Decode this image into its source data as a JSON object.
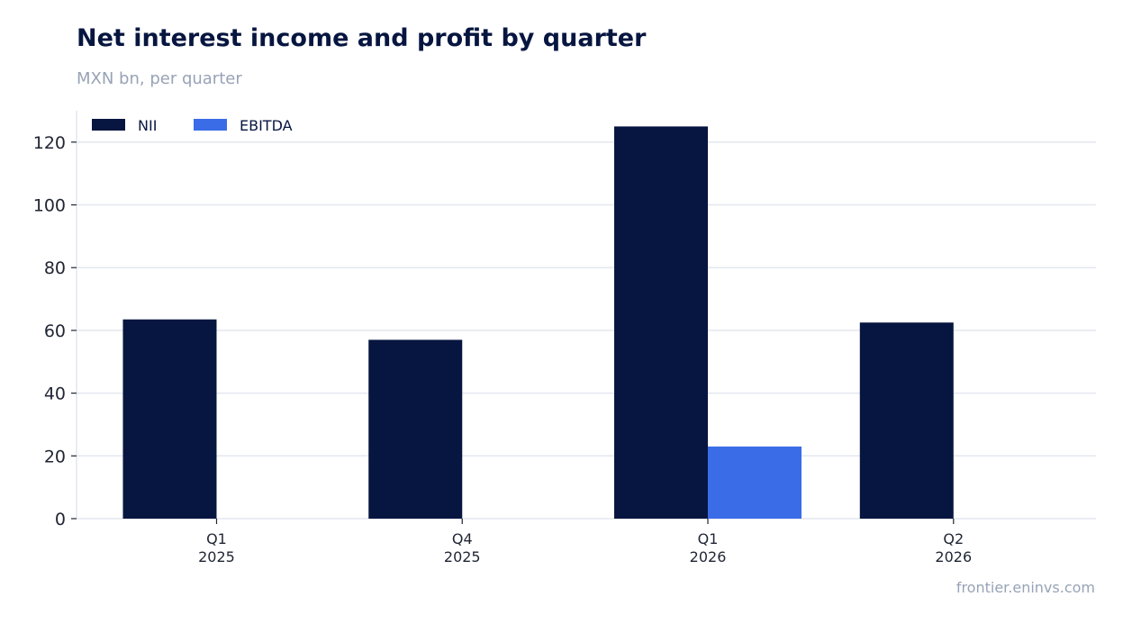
{
  "chart_data": {
    "type": "bar",
    "title": "Net interest income and profit by quarter",
    "subtitle": "MXN bn, per quarter",
    "categories": [
      [
        "Q1",
        "2025"
      ],
      [
        "Q4",
        "2025"
      ],
      [
        "Q1",
        "2026"
      ],
      [
        "Q2",
        "2026"
      ]
    ],
    "series": [
      {
        "name": "NII",
        "color": "#071640",
        "values": [
          63.5,
          57,
          125,
          62.5
        ]
      },
      {
        "name": "EBITDA",
        "color": "#3b6ce8",
        "values": [
          null,
          null,
          23,
          null
        ]
      }
    ],
    "ylim": [
      0,
      130
    ],
    "yticks": [
      0,
      20,
      40,
      60,
      80,
      100,
      120
    ],
    "grid": true,
    "legend": "top-left"
  },
  "source": "frontier.eninvs.com"
}
